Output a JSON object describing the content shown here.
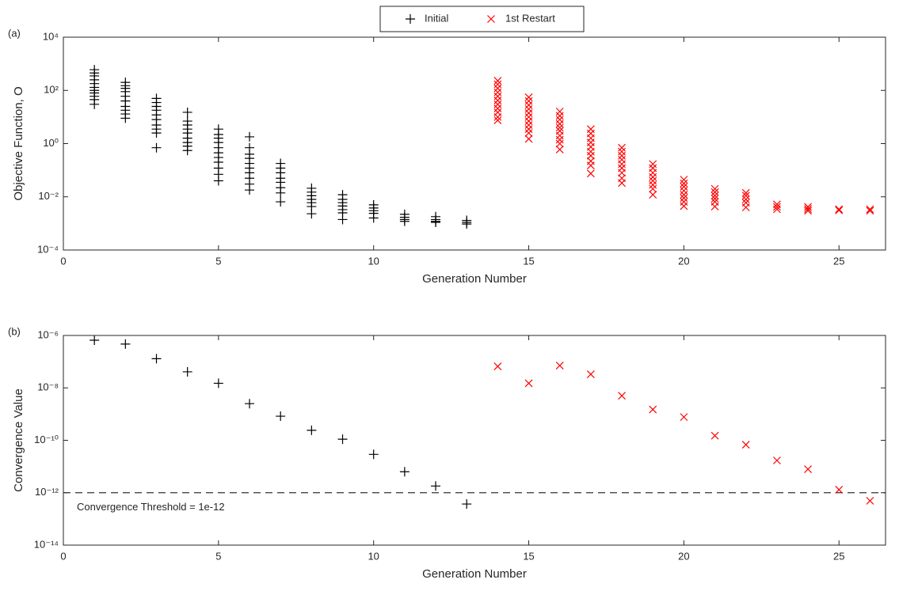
{
  "chart_data": [
    {
      "type": "scatter",
      "panel_label": "(a)",
      "xlabel": "Generation Number",
      "ylabel": "Objective Function, O",
      "xlim": [
        0,
        26.5
      ],
      "xticks": [
        0,
        5,
        10,
        15,
        20,
        25
      ],
      "ylim": [
        0.0001,
        10000
      ],
      "yscale": "log",
      "yticks": [
        {
          "value": 0.0001,
          "label": "10⁻⁴"
        },
        {
          "value": 0.01,
          "label": "10⁻²"
        },
        {
          "value": 1,
          "label": "10⁰"
        },
        {
          "value": 100,
          "label": "10²"
        },
        {
          "value": 10000,
          "label": "10⁴"
        }
      ],
      "grid": false,
      "legend": "top",
      "series": [
        {
          "name": "Initial",
          "color": "#000000",
          "marker": "plus",
          "x": [
            1,
            2,
            3,
            4,
            5,
            6,
            7,
            8,
            9,
            10,
            11,
            12,
            13
          ],
          "values": [
            [
              600,
              450,
              350,
              250,
              180,
              130,
              100,
              80,
              60,
              45,
              30
            ],
            [
              200,
              150,
              120,
              90,
              60,
              40,
              25,
              18,
              13,
              9
            ],
            [
              50,
              35,
              25,
              18,
              12,
              8,
              5,
              3.5,
              2.5,
              0.7
            ],
            [
              15,
              7,
              5,
              3.5,
              2.5,
              1.6,
              1.1,
              0.8,
              0.55
            ],
            [
              3.5,
              2.2,
              1.6,
              1.1,
              0.7,
              0.45,
              0.3,
              0.2,
              0.12,
              0.07,
              0.04
            ],
            [
              1.8,
              0.7,
              0.4,
              0.28,
              0.18,
              0.12,
              0.08,
              0.05,
              0.03,
              0.018
            ],
            [
              0.18,
              0.12,
              0.08,
              0.05,
              0.035,
              0.022,
              0.014,
              0.0065
            ],
            [
              0.021,
              0.015,
              0.011,
              0.008,
              0.006,
              0.0043,
              0.0023
            ],
            [
              0.012,
              0.008,
              0.006,
              0.0045,
              0.0033,
              0.0025,
              0.0014
            ],
            [
              0.005,
              0.0038,
              0.003,
              0.0024,
              0.0016
            ],
            [
              0.0022,
              0.0017,
              0.0014,
              0.0012
            ],
            [
              0.0018,
              0.0014,
              0.0012,
              0.0011
            ],
            [
              0.0013,
              0.0011,
              0.00095
            ]
          ]
        },
        {
          "name": "1st Restart",
          "color": "#ff0000",
          "marker": "cross",
          "x": [
            14,
            15,
            16,
            17,
            18,
            19,
            20,
            21,
            22,
            23,
            24,
            25,
            26
          ],
          "values": [
            [
              230,
              170,
              120,
              85,
              60,
              42,
              30,
              21,
              15,
              10,
              7.5
            ],
            [
              55,
              40,
              28,
              20,
              14,
              10,
              7,
              5,
              3.5,
              2.5,
              1.5
            ],
            [
              16,
              11,
              8,
              5.5,
              4,
              3,
              2,
              1.4,
              1,
              0.6
            ],
            [
              3.5,
              2.4,
              1.6,
              1.1,
              0.75,
              0.5,
              0.35,
              0.22,
              0.15,
              0.075
            ],
            [
              0.7,
              0.5,
              0.35,
              0.25,
              0.17,
              0.12,
              0.08,
              0.05,
              0.033
            ],
            [
              0.17,
              0.12,
              0.08,
              0.055,
              0.04,
              0.028,
              0.02,
              0.012
            ],
            [
              0.044,
              0.032,
              0.024,
              0.017,
              0.012,
              0.009,
              0.0065,
              0.0045
            ],
            [
              0.02,
              0.015,
              0.011,
              0.0085,
              0.0065,
              0.0043
            ],
            [
              0.014,
              0.011,
              0.008,
              0.006,
              0.004
            ],
            [
              0.0052,
              0.0042,
              0.0034
            ],
            [
              0.0042,
              0.0035,
              0.003
            ],
            [
              0.0034,
              0.0031
            ],
            [
              0.0034,
              0.003
            ]
          ]
        }
      ]
    },
    {
      "type": "scatter",
      "panel_label": "(b)",
      "xlabel": "Generation Number",
      "ylabel": "Convergence Value",
      "xlim": [
        0,
        26.5
      ],
      "xticks": [
        0,
        5,
        10,
        15,
        20,
        25
      ],
      "ylim": [
        1e-14,
        1e-06
      ],
      "yscale": "log",
      "yticks": [
        {
          "value": 1e-14,
          "label": "10⁻¹⁴"
        },
        {
          "value": 1e-12,
          "label": "10⁻¹²"
        },
        {
          "value": 1e-10,
          "label": "10⁻¹⁰"
        },
        {
          "value": 1e-08,
          "label": "10⁻⁸"
        },
        {
          "value": 1e-06,
          "label": "10⁻⁶"
        }
      ],
      "grid": false,
      "threshold": {
        "value": 1e-12,
        "label": "Convergence Threshold = 1e-12"
      },
      "series": [
        {
          "color": "#000000",
          "marker": "plus",
          "x": [
            1,
            2,
            3,
            4,
            5,
            6,
            7,
            8,
            9,
            10,
            11,
            12,
            13
          ],
          "values": [
            6.6e-07,
            4.7e-07,
            1.3e-07,
            4.1e-08,
            1.5e-08,
            2.5e-09,
            8.3e-10,
            2.4e-10,
            1.1e-10,
            2.9e-11,
            6.3e-12,
            1.8e-12,
            3.7e-13
          ]
        },
        {
          "color": "#ff0000",
          "marker": "cross",
          "x": [
            14,
            15,
            16,
            17,
            18,
            19,
            20,
            21,
            22,
            23,
            24,
            25,
            26
          ],
          "values": [
            6.6e-08,
            1.5e-08,
            7.1e-08,
            3.3e-08,
            5e-09,
            1.5e-09,
            7.7e-10,
            1.5e-10,
            6.8e-11,
            1.7e-11,
            7.9e-12,
            1.3e-12,
            4.9e-13
          ]
        }
      ]
    }
  ]
}
